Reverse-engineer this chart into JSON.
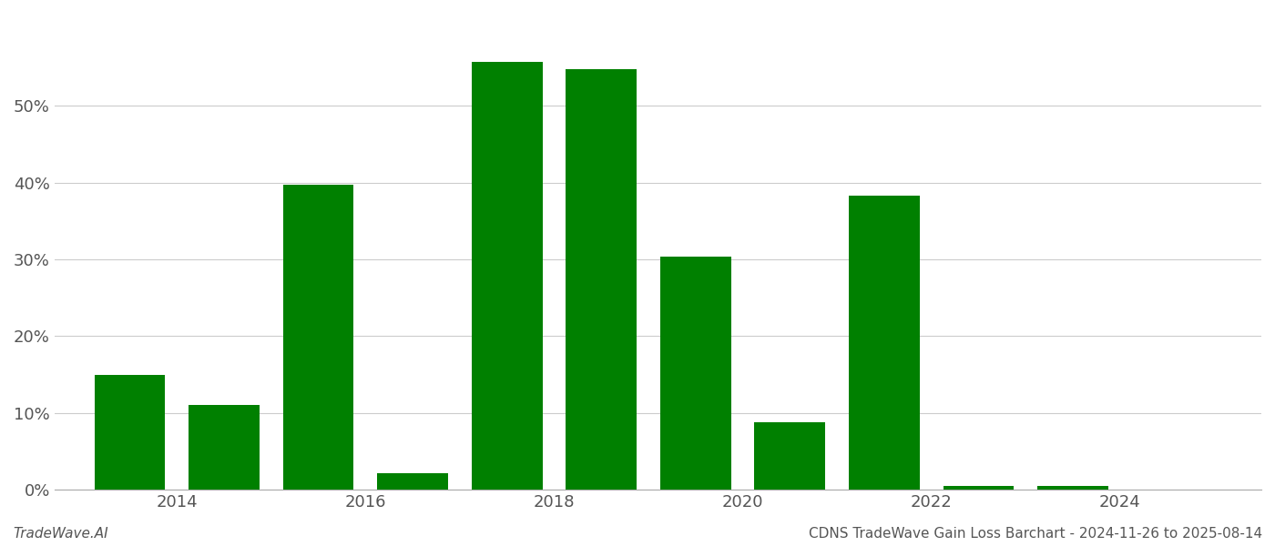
{
  "years": [
    2013,
    2014,
    2015,
    2016,
    2017,
    2018,
    2019,
    2020,
    2021,
    2022,
    2023
  ],
  "values": [
    0.149,
    0.11,
    0.397,
    0.022,
    0.557,
    0.548,
    0.304,
    0.088,
    0.383,
    0.005,
    0.005
  ],
  "bar_color": "#008000",
  "ylim": [
    0,
    0.62
  ],
  "yticks": [
    0.0,
    0.1,
    0.2,
    0.3,
    0.4,
    0.5
  ],
  "xtick_positions": [
    2013.5,
    2015.5,
    2017.5,
    2019.5,
    2021.5,
    2023.5
  ],
  "xtick_labels": [
    "2014",
    "2016",
    "2018",
    "2020",
    "2022",
    "2024"
  ],
  "footer_left": "TradeWave.AI",
  "footer_right": "CDNS TradeWave Gain Loss Barchart - 2024-11-26 to 2025-08-14",
  "background_color": "#ffffff",
  "grid_color": "#cccccc",
  "bar_width": 0.75,
  "tick_fontsize": 13,
  "footer_fontsize": 11
}
